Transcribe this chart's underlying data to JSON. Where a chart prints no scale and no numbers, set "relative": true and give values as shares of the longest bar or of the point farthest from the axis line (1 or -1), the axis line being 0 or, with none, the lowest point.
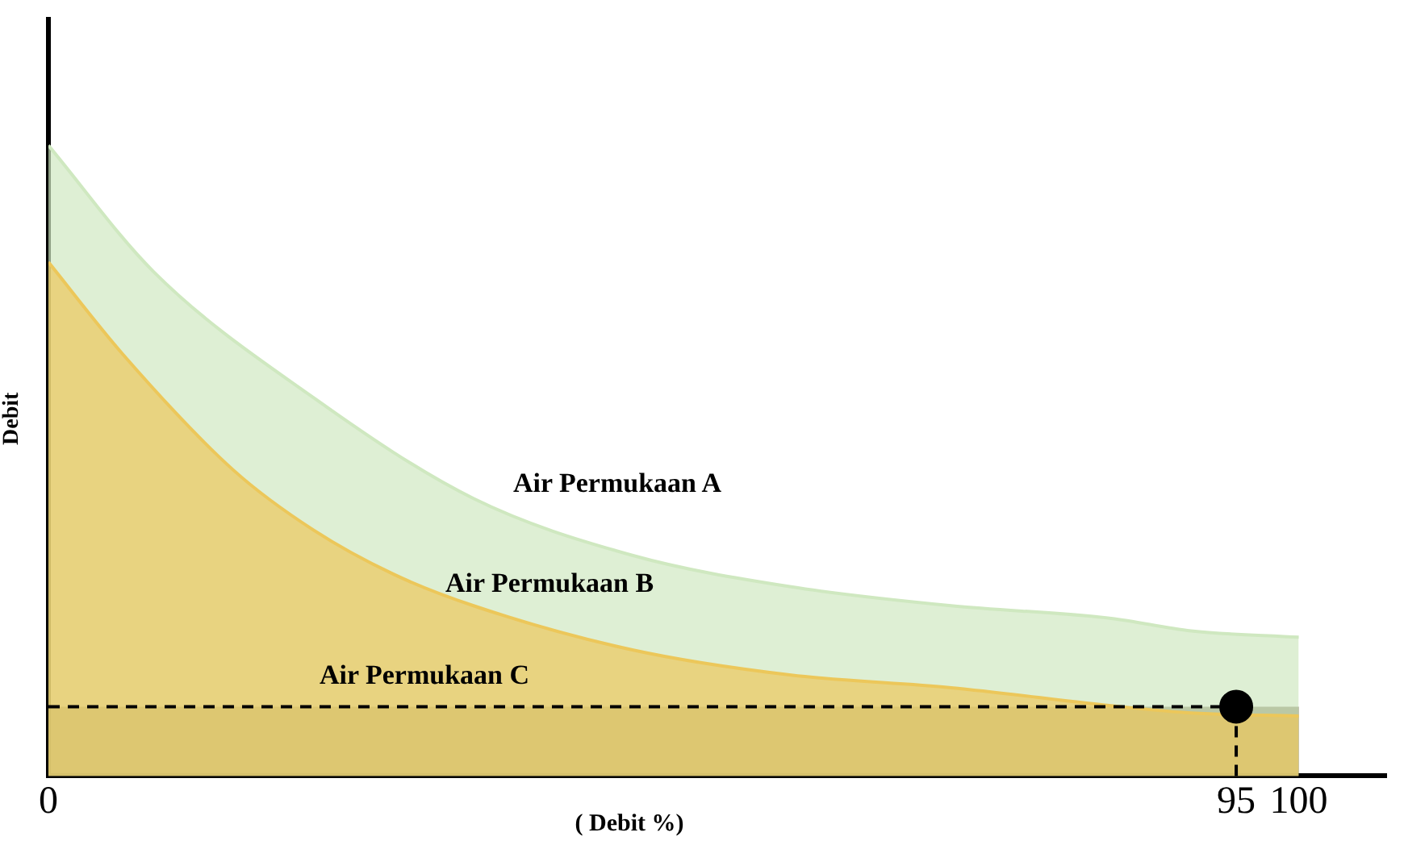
{
  "chart_data": {
    "type": "area",
    "relative": true,
    "xlabel": "( Debit %)",
    "ylabel": "Debit",
    "x": [
      0,
      8.4,
      21.2,
      34,
      46.7,
      59.4,
      72.2,
      85,
      91.4,
      100
    ],
    "xlim": [
      0,
      107
    ],
    "xticks": [
      0,
      95,
      100
    ],
    "series": [
      {
        "color": "#cfe8c0",
        "values": [
          1.0,
          0.8,
          0.6,
          0.44,
          0.35,
          0.3,
          0.27,
          0.25,
          0.23,
          0.22
        ]
      },
      {
        "x": [
          0,
          5.9,
          14.8,
          21.2,
          27.6,
          34,
          46.7,
          59.4,
          72.2,
          85.7,
          91.4,
          100
        ],
        "color": "#ecc75a",
        "values": [
          0.815,
          0.67,
          0.485,
          0.39,
          0.32,
          0.27,
          0.2,
          0.16,
          0.14,
          0.11,
          0.1,
          0.095
        ]
      },
      {
        "type": "scatter",
        "x": [
          95
        ],
        "color": "#000000",
        "values": [
          0.11
        ]
      }
    ],
    "bands": [
      {
        "axis": "y",
        "from": 0,
        "to": 0.11,
        "color": "#5a4a2a"
      }
    ],
    "ref_lines": [
      {
        "axis": "y",
        "value": 0.11,
        "line_style": "dashed",
        "color": "#000000"
      },
      {
        "axis": "x",
        "value": 95,
        "line_style": "dashed",
        "color": "#000000"
      }
    ],
    "annotations": [
      "Air Permukaan A",
      "Air Permukaan B",
      "Air Permukaan C"
    ],
    "line_style": "solid",
    "grid": false,
    "legend": false
  }
}
